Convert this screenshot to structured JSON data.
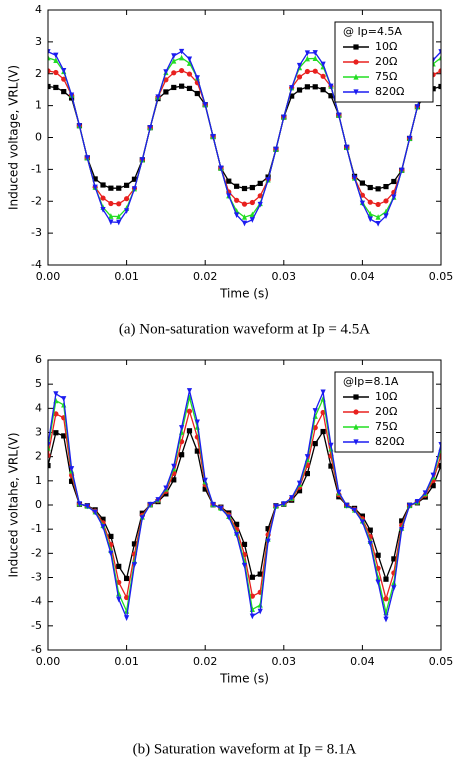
{
  "chart_data": [
    {
      "type": "line",
      "caption": "(a) Non-saturation waveform at Ip = 4.5A",
      "xlabel": "Time (s)",
      "ylabel": "Induced voltage, VRL(V)",
      "legend_title": "@ Ip=4.5A",
      "legend": "upper right",
      "grid": false,
      "x": [
        0,
        0.001,
        0.002,
        0.003,
        0.004,
        0.005,
        0.006,
        0.007,
        0.008,
        0.009,
        0.01,
        0.011,
        0.012,
        0.013,
        0.014,
        0.015,
        0.016,
        0.017,
        0.018,
        0.019,
        0.02,
        0.021,
        0.022,
        0.023,
        0.024,
        0.025,
        0.026,
        0.027,
        0.028,
        0.029,
        0.03,
        0.031,
        0.032,
        0.033,
        0.034,
        0.035,
        0.036,
        0.037,
        0.038,
        0.039,
        0.04,
        0.041,
        0.042,
        0.043,
        0.044,
        0.045,
        0.046,
        0.047,
        0.048,
        0.049,
        0.05
      ],
      "xlim": [
        0,
        0.05
      ],
      "xticks": [
        {
          "value": 0,
          "label": "0.00"
        },
        0.01,
        0.02,
        0.03,
        0.04,
        0.05
      ],
      "ylim": [
        -4,
        4
      ],
      "yticks": [
        -4,
        -3,
        -2,
        -1,
        0,
        1,
        2,
        3,
        4
      ],
      "series": [
        {
          "name": "10Ω",
          "color": "#000000",
          "marker": "square",
          "values": [
            1.6,
            1.57,
            1.44,
            1.24,
            0.37,
            -0.64,
            -1.3,
            -1.49,
            -1.59,
            -1.59,
            -1.5,
            -1.31,
            -0.7,
            0.31,
            1.22,
            1.43,
            1.57,
            1.61,
            1.54,
            1.38,
            1.03,
            0.03,
            -0.96,
            -1.37,
            -1.53,
            -1.6,
            -1.57,
            -1.44,
            -1.24,
            -0.37,
            0.64,
            1.3,
            1.49,
            1.59,
            1.59,
            1.5,
            1.31,
            0.7,
            -0.31,
            -1.22,
            -1.43,
            -1.57,
            -1.61,
            -1.54,
            -1.38,
            -1.03,
            -0.03,
            0.96,
            1.37,
            1.53,
            1.6
          ]
        },
        {
          "name": "20Ω",
          "color": "#e8201e",
          "marker": "circle",
          "values": [
            2.09,
            2.04,
            1.83,
            1.33,
            0.37,
            -0.64,
            -1.56,
            -1.9,
            -2.07,
            -2.08,
            -1.92,
            -1.6,
            -0.7,
            0.31,
            1.27,
            1.81,
            2.03,
            2.1,
            1.99,
            1.72,
            1.03,
            0.03,
            -0.96,
            -1.71,
            -1.97,
            -2.09,
            -2.04,
            -1.83,
            -1.33,
            -0.37,
            0.64,
            1.56,
            1.9,
            2.07,
            2.08,
            1.92,
            1.6,
            0.7,
            -0.31,
            -1.27,
            -1.81,
            -2.03,
            -2.1,
            -1.99,
            -1.72,
            -1.03,
            -0.03,
            0.96,
            1.71,
            1.97,
            2.09
          ]
        },
        {
          "name": "75Ω",
          "color": "#22dd22",
          "marker": "triangle",
          "values": [
            2.5,
            2.42,
            2.07,
            1.33,
            0.37,
            -0.64,
            -1.56,
            -2.19,
            -2.47,
            -2.48,
            -2.22,
            -1.61,
            -0.7,
            0.31,
            1.27,
            2.04,
            2.4,
            2.5,
            2.33,
            1.87,
            1.03,
            0.03,
            -0.96,
            -1.83,
            -2.31,
            -2.5,
            -2.42,
            -2.07,
            -1.33,
            -0.37,
            0.64,
            1.56,
            2.19,
            2.47,
            2.48,
            2.22,
            1.61,
            0.7,
            -0.31,
            -1.27,
            -2.04,
            -2.4,
            -2.5,
            -2.33,
            -1.87,
            -1.03,
            -0.03,
            0.96,
            1.83,
            2.31,
            2.5
          ]
        },
        {
          "name": "820Ω",
          "color": "#1c1cf0",
          "marker": "down-triangle",
          "values": [
            2.69,
            2.58,
            2.1,
            1.33,
            0.37,
            -0.64,
            -1.56,
            -2.26,
            -2.65,
            -2.66,
            -2.3,
            -1.61,
            -0.7,
            0.31,
            1.27,
            2.06,
            2.56,
            2.7,
            2.46,
            1.87,
            1.03,
            0.03,
            -0.96,
            -1.83,
            -2.43,
            -2.69,
            -2.58,
            -2.1,
            -1.33,
            -0.37,
            0.64,
            1.56,
            2.26,
            2.65,
            2.66,
            2.3,
            1.61,
            0.7,
            -0.31,
            -1.27,
            -2.06,
            -2.56,
            -2.7,
            -2.46,
            -1.87,
            -1.03,
            -0.03,
            0.96,
            1.83,
            2.43,
            2.69
          ]
        }
      ]
    },
    {
      "type": "line",
      "caption": "(b) Saturation waveform at Ip = 8.1A",
      "xlabel": "Time (s)",
      "ylabel": "Induced voltahe, VRL(V)",
      "legend_title": "@Ip=8.1A",
      "legend": "upper right",
      "grid": false,
      "x": [
        0,
        0.001,
        0.002,
        0.003,
        0.004,
        0.005,
        0.006,
        0.007,
        0.008,
        0.009,
        0.01,
        0.011,
        0.012,
        0.013,
        0.014,
        0.015,
        0.016,
        0.017,
        0.018,
        0.019,
        0.02,
        0.021,
        0.022,
        0.023,
        0.024,
        0.025,
        0.026,
        0.027,
        0.028,
        0.029,
        0.03,
        0.031,
        0.032,
        0.033,
        0.034,
        0.035,
        0.036,
        0.037,
        0.038,
        0.039,
        0.04,
        0.041,
        0.042,
        0.043,
        0.044,
        0.045,
        0.046,
        0.047,
        0.048,
        0.049,
        0.05
      ],
      "xlim": [
        0,
        0.05
      ],
      "xticks": [
        {
          "value": 0,
          "label": "0.00"
        },
        0.01,
        0.02,
        0.03,
        0.04,
        0.05
      ],
      "ylim": [
        -6,
        6
      ],
      "yticks": [
        -6,
        -5,
        -4,
        -3,
        -2,
        -1,
        0,
        1,
        2,
        3,
        4,
        5,
        6
      ],
      "series": [
        {
          "name": "10Ω",
          "color": "#000000",
          "marker": "square",
          "values": [
            1.63,
            2.99,
            2.86,
            0.98,
            0.03,
            -0.03,
            -0.2,
            -0.59,
            -1.3,
            -2.54,
            -3.04,
            -1.61,
            -0.34,
            0.01,
            0.14,
            0.46,
            1.04,
            2.08,
            3.07,
            2.23,
            0.66,
            0.01,
            -0.09,
            -0.33,
            -0.8,
            -1.63,
            -2.99,
            -2.86,
            -0.98,
            -0.03,
            0.03,
            0.2,
            0.59,
            1.3,
            2.54,
            3.04,
            1.61,
            0.34,
            -0.01,
            -0.14,
            -0.46,
            -1.04,
            -2.08,
            -3.07,
            -2.23,
            -0.66,
            -0.01,
            0.09,
            0.33,
            0.8,
            1.63
          ]
        },
        {
          "name": "20Ω",
          "color": "#e8201e",
          "marker": "circle",
          "values": [
            2.05,
            3.77,
            3.61,
            1.23,
            0.04,
            -0.04,
            -0.25,
            -0.74,
            -1.64,
            -3.2,
            -3.83,
            -2.03,
            -0.43,
            0.02,
            0.18,
            0.57,
            1.31,
            2.62,
            3.88,
            2.81,
            0.84,
            0.02,
            -0.11,
            -0.41,
            -1.01,
            -2.05,
            -3.77,
            -3.61,
            -1.23,
            -0.04,
            0.04,
            0.25,
            0.74,
            1.64,
            3.2,
            3.83,
            2.03,
            0.43,
            -0.02,
            -0.18,
            -0.57,
            -1.31,
            -2.62,
            -3.88,
            -2.81,
            -0.84,
            -0.02,
            0.11,
            0.41,
            1.01,
            2.05
          ]
        },
        {
          "name": "75Ω",
          "color": "#22dd22",
          "marker": "triangle",
          "values": [
            2.35,
            4.32,
            4.14,
            1.41,
            0.05,
            -0.05,
            -0.28,
            -0.85,
            -1.88,
            -3.67,
            -4.39,
            -2.32,
            -0.5,
            0.02,
            0.21,
            0.66,
            1.5,
            3.01,
            4.45,
            3.22,
            0.96,
            0.02,
            -0.13,
            -0.47,
            -1.16,
            -2.35,
            -4.32,
            -4.14,
            -1.41,
            -0.05,
            0.05,
            0.28,
            0.85,
            1.88,
            3.67,
            4.39,
            2.32,
            0.5,
            -0.02,
            -0.21,
            -0.66,
            -1.5,
            -3.01,
            -4.45,
            -3.22,
            -0.96,
            -0.02,
            0.13,
            0.47,
            1.16,
            2.35
          ]
        },
        {
          "name": "820Ω",
          "color": "#1c1cf0",
          "marker": "down-triangle",
          "values": [
            2.5,
            4.6,
            4.4,
            1.5,
            0.05,
            -0.05,
            -0.3,
            -0.9,
            -2.0,
            -3.9,
            -4.67,
            -2.47,
            -0.53,
            0.02,
            0.22,
            0.7,
            1.6,
            3.2,
            4.73,
            3.43,
            1.02,
            0.02,
            -0.14,
            -0.5,
            -1.23,
            -2.5,
            -4.6,
            -4.4,
            -1.5,
            -0.05,
            0.05,
            0.3,
            0.9,
            2.0,
            3.9,
            4.67,
            2.47,
            0.53,
            -0.02,
            -0.22,
            -0.7,
            -1.6,
            -3.2,
            -4.73,
            -3.43,
            -1.02,
            -0.02,
            0.14,
            0.5,
            1.23,
            2.5
          ]
        }
      ]
    }
  ]
}
